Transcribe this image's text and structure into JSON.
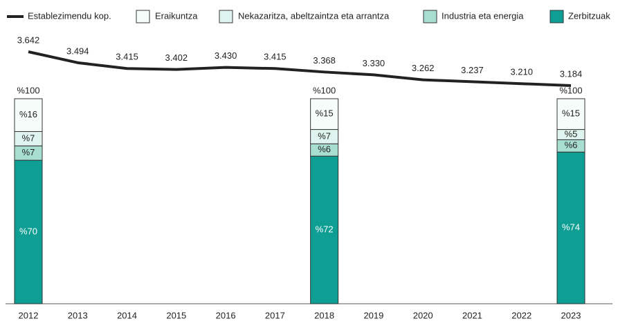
{
  "chart_data": {
    "type": "bar_line",
    "categories": [
      "2012",
      "2013",
      "2014",
      "2015",
      "2016",
      "2017",
      "2018",
      "2019",
      "2020",
      "2021",
      "2022",
      "2023"
    ],
    "line": {
      "name": "Establezimendu kop.",
      "color": "#222222",
      "values": [
        3642,
        3494,
        3415,
        3402,
        3430,
        3415,
        3368,
        3330,
        3262,
        3237,
        3210,
        3184
      ],
      "value_labels": [
        "3.642",
        "3.494",
        "3.415",
        "3.402",
        "3.430",
        "3.415",
        "3.368",
        "3.330",
        "3.262",
        "3.237",
        "3.210",
        "3.184"
      ]
    },
    "total_labels": [
      "%100",
      null,
      null,
      null,
      null,
      null,
      "%100",
      null,
      null,
      null,
      null,
      "%100"
    ],
    "series": [
      {
        "name": "Zerbitzuak",
        "color": "#0e9e94",
        "values": [
          70,
          null,
          null,
          null,
          null,
          null,
          72,
          null,
          null,
          null,
          null,
          74
        ],
        "value_labels": [
          "%70",
          null,
          null,
          null,
          null,
          null,
          "%72",
          null,
          null,
          null,
          null,
          "%74"
        ]
      },
      {
        "name": "Industria eta energia",
        "color": "#a8ded0",
        "values": [
          7,
          null,
          null,
          null,
          null,
          null,
          6,
          null,
          null,
          null,
          null,
          6
        ],
        "value_labels": [
          "%7",
          null,
          null,
          null,
          null,
          null,
          "%6",
          null,
          null,
          null,
          null,
          "%6"
        ]
      },
      {
        "name": "Nekazaritza, abeltzaintza eta arrantza",
        "color": "#e0f4ef",
        "values": [
          7,
          null,
          null,
          null,
          null,
          null,
          7,
          null,
          null,
          null,
          null,
          5
        ],
        "value_labels": [
          "%7",
          null,
          null,
          null,
          null,
          null,
          "%7",
          null,
          null,
          null,
          null,
          "%5"
        ]
      },
      {
        "name": "Eraikuntza",
        "color": "#f6fcfa",
        "values": [
          16,
          null,
          null,
          null,
          null,
          null,
          15,
          null,
          null,
          null,
          null,
          15
        ],
        "value_labels": [
          "%16",
          null,
          null,
          null,
          null,
          null,
          "%15",
          null,
          null,
          null,
          null,
          "%15"
        ]
      }
    ]
  }
}
